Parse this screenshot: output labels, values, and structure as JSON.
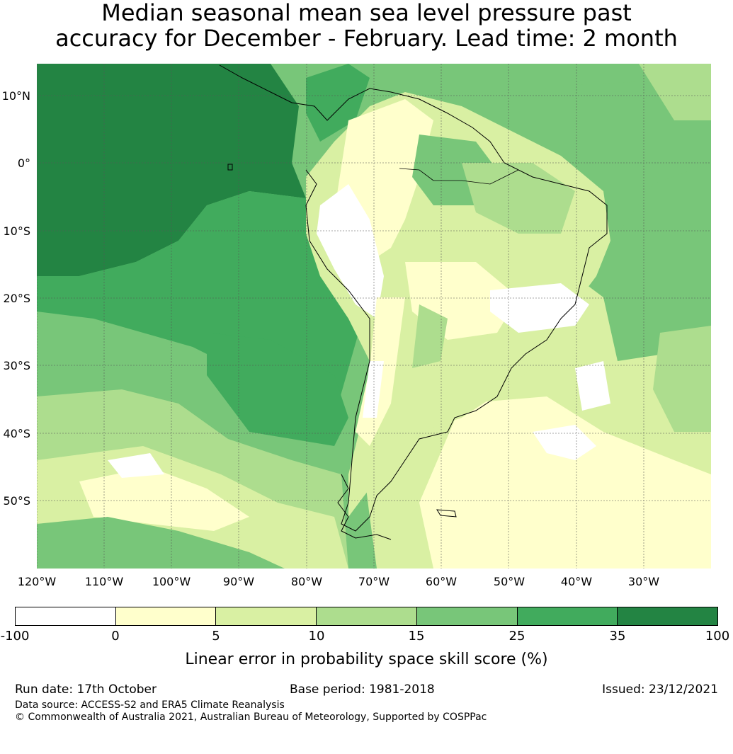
{
  "title_line1": "Median seasonal mean sea level pressure past",
  "title_line2": "accuracy for December - February. Lead time: 2 month",
  "lat_labels": [
    "10°N",
    "0°",
    "10°S",
    "20°S",
    "30°S",
    "40°S",
    "50°S"
  ],
  "lon_labels": [
    "120°W",
    "110°W",
    "100°W",
    "90°W",
    "80°W",
    "70°W",
    "60°W",
    "50°W",
    "40°W",
    "30°W"
  ],
  "colorbar": {
    "ticks": [
      "-100",
      "0",
      "5",
      "10",
      "15",
      "25",
      "35",
      "100"
    ],
    "colors": [
      "#ffffff",
      "#ffffcc",
      "#d9f0a3",
      "#addd8e",
      "#78c679",
      "#41ab5d",
      "#238443"
    ],
    "label": "Linear error in probability space skill score (%)"
  },
  "footer": {
    "run_date": "Run date: 17th October",
    "base_period": "Base period: 1981-2018",
    "issued": "Issued: 23/12/2021",
    "data_source": "Data source: ACCESS-S2 and ERA5 Climate Reanalysis",
    "copyright": "© Commonwealth of Australia 2021, Australian Bureau of Meteorology, Supported by COSPPac"
  },
  "map": {
    "lon_range": [
      -121.5,
      -20
    ],
    "lat_range": [
      -60,
      15
    ],
    "ocean_color": "#78c679",
    "coastline_color": "#000000"
  }
}
